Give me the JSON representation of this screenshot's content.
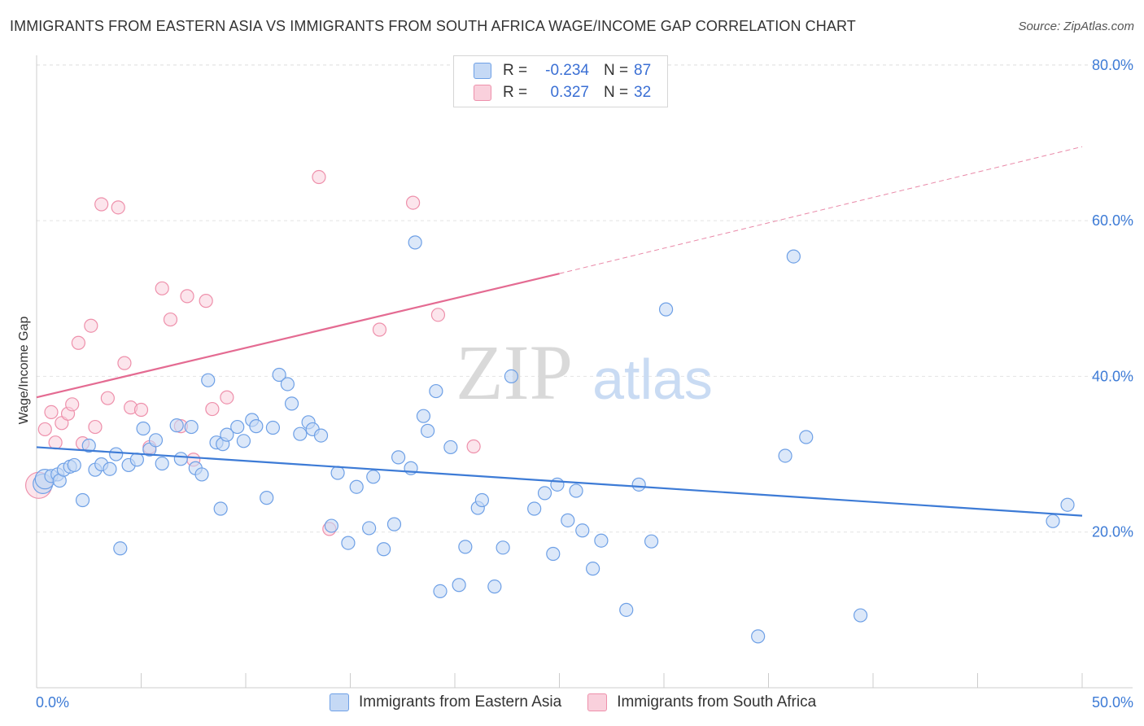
{
  "title": "IMMIGRANTS FROM EASTERN ASIA VS IMMIGRANTS FROM SOUTH AFRICA WAGE/INCOME GAP CORRELATION CHART",
  "source": "Source: ZipAtlas.com",
  "watermark": {
    "zip": "ZIP",
    "atlas": "atlas"
  },
  "legend": {
    "r_label": "R =",
    "n_label": "N =",
    "rows": [
      {
        "r": "-0.234",
        "n": "87",
        "color": "#6ea0e6",
        "fill": "#c5d9f5"
      },
      {
        "r": "0.327",
        "n": "32",
        "color": "#ee90ab",
        "fill": "#f9d0dc"
      }
    ]
  },
  "bottom_legend": [
    {
      "label": "Immigrants from Eastern Asia",
      "color": "#6ea0e6",
      "fill": "#c5d9f5"
    },
    {
      "label": "Immigrants from South Africa",
      "color": "#ee90ab",
      "fill": "#f9d0dc"
    }
  ],
  "chart_data": {
    "type": "scatter",
    "title": "IMMIGRANTS FROM EASTERN ASIA VS IMMIGRANTS FROM SOUTH AFRICA WAGE/INCOME GAP CORRELATION CHART",
    "xlabel": "",
    "ylabel": "Wage/Income Gap",
    "xlim": [
      0,
      50
    ],
    "ylim": [
      0,
      80
    ],
    "x_tick_labels": [
      "0.0%",
      "50.0%"
    ],
    "y_ticks": [
      20,
      40,
      60,
      80
    ],
    "y_tick_labels": [
      "20.0%",
      "40.0%",
      "60.0%",
      "80.0%"
    ],
    "grid": true,
    "legend_position": "top-center",
    "colors": {
      "blue": "#3d7bd6",
      "pink": "#e46b92",
      "blue_point": "#6ea0e6",
      "pink_point": "#ee90ab"
    },
    "series": [
      {
        "name": "Immigrants from Eastern Asia",
        "r": -0.234,
        "n": 87,
        "trend": {
          "x": [
            0,
            50
          ],
          "y": [
            30.9,
            22.1
          ]
        },
        "points": [
          [
            0.3,
            26.2
          ],
          [
            0.4,
            26.8
          ],
          [
            0.7,
            27.2
          ],
          [
            1.0,
            27.4
          ],
          [
            1.1,
            26.6
          ],
          [
            1.3,
            28.0
          ],
          [
            1.6,
            28.4
          ],
          [
            1.8,
            28.6
          ],
          [
            2.2,
            24.1
          ],
          [
            2.5,
            31.1
          ],
          [
            2.8,
            28.0
          ],
          [
            3.1,
            28.7
          ],
          [
            3.5,
            28.1
          ],
          [
            3.8,
            30.0
          ],
          [
            4.0,
            17.9
          ],
          [
            4.4,
            28.6
          ],
          [
            4.8,
            29.3
          ],
          [
            5.1,
            33.3
          ],
          [
            5.4,
            30.6
          ],
          [
            5.7,
            31.8
          ],
          [
            6.0,
            28.8
          ],
          [
            6.7,
            33.7
          ],
          [
            6.9,
            29.4
          ],
          [
            7.4,
            33.5
          ],
          [
            7.6,
            28.2
          ],
          [
            7.9,
            27.4
          ],
          [
            8.2,
            39.5
          ],
          [
            8.6,
            31.5
          ],
          [
            8.8,
            23.0
          ],
          [
            8.9,
            31.3
          ],
          [
            9.1,
            32.5
          ],
          [
            9.6,
            33.5
          ],
          [
            9.9,
            31.7
          ],
          [
            10.3,
            34.4
          ],
          [
            10.5,
            33.6
          ],
          [
            11.0,
            24.4
          ],
          [
            11.3,
            33.4
          ],
          [
            11.6,
            40.2
          ],
          [
            12.0,
            39.0
          ],
          [
            12.2,
            36.5
          ],
          [
            12.6,
            32.6
          ],
          [
            13.0,
            34.1
          ],
          [
            13.2,
            33.2
          ],
          [
            13.6,
            32.4
          ],
          [
            14.1,
            20.8
          ],
          [
            14.4,
            27.6
          ],
          [
            14.9,
            18.6
          ],
          [
            15.3,
            25.8
          ],
          [
            15.9,
            20.5
          ],
          [
            16.1,
            27.1
          ],
          [
            16.6,
            17.8
          ],
          [
            17.1,
            21.0
          ],
          [
            17.3,
            29.6
          ],
          [
            17.9,
            28.2
          ],
          [
            18.1,
            57.2
          ],
          [
            18.5,
            34.9
          ],
          [
            18.7,
            33.0
          ],
          [
            19.1,
            38.1
          ],
          [
            19.3,
            12.4
          ],
          [
            19.8,
            30.9
          ],
          [
            20.2,
            13.2
          ],
          [
            20.5,
            18.1
          ],
          [
            21.1,
            23.1
          ],
          [
            21.3,
            24.1
          ],
          [
            21.9,
            13.0
          ],
          [
            22.3,
            18.0
          ],
          [
            22.7,
            40.0
          ],
          [
            23.8,
            23.0
          ],
          [
            24.3,
            25.0
          ],
          [
            24.7,
            17.2
          ],
          [
            24.9,
            26.1
          ],
          [
            25.4,
            21.5
          ],
          [
            25.8,
            25.3
          ],
          [
            26.1,
            20.2
          ],
          [
            26.6,
            15.3
          ],
          [
            27.0,
            18.9
          ],
          [
            28.2,
            10.0
          ],
          [
            28.8,
            26.1
          ],
          [
            29.4,
            18.8
          ],
          [
            30.1,
            48.6
          ],
          [
            34.5,
            6.6
          ],
          [
            35.8,
            29.8
          ],
          [
            36.2,
            55.4
          ],
          [
            36.8,
            32.2
          ],
          [
            39.4,
            9.3
          ],
          [
            48.6,
            21.4
          ],
          [
            49.3,
            23.5
          ]
        ]
      },
      {
        "name": "Immigrants from South Africa",
        "r": 0.327,
        "n": 32,
        "trend": {
          "x": [
            0,
            25
          ],
          "y": [
            37.3,
            53.2
          ]
        },
        "trend_extended": {
          "x": [
            25,
            50
          ],
          "y": [
            53.2,
            69.5
          ]
        },
        "points": [
          [
            0.1,
            26.0
          ],
          [
            0.4,
            33.2
          ],
          [
            0.7,
            35.4
          ],
          [
            0.9,
            31.5
          ],
          [
            1.2,
            34.0
          ],
          [
            1.5,
            35.2
          ],
          [
            1.7,
            36.4
          ],
          [
            2.0,
            44.3
          ],
          [
            2.2,
            31.4
          ],
          [
            2.6,
            46.5
          ],
          [
            2.8,
            33.5
          ],
          [
            3.1,
            62.1
          ],
          [
            3.4,
            37.2
          ],
          [
            3.9,
            61.7
          ],
          [
            4.2,
            41.7
          ],
          [
            4.5,
            36.0
          ],
          [
            5.0,
            35.7
          ],
          [
            5.4,
            30.9
          ],
          [
            6.0,
            51.3
          ],
          [
            6.4,
            47.3
          ],
          [
            6.9,
            33.6
          ],
          [
            7.2,
            50.3
          ],
          [
            7.5,
            29.3
          ],
          [
            8.1,
            49.7
          ],
          [
            8.4,
            35.8
          ],
          [
            9.1,
            37.3
          ],
          [
            13.5,
            65.6
          ],
          [
            14.0,
            20.4
          ],
          [
            16.4,
            46.0
          ],
          [
            18.0,
            62.3
          ],
          [
            19.2,
            47.9
          ],
          [
            20.9,
            31.0
          ]
        ]
      }
    ]
  }
}
